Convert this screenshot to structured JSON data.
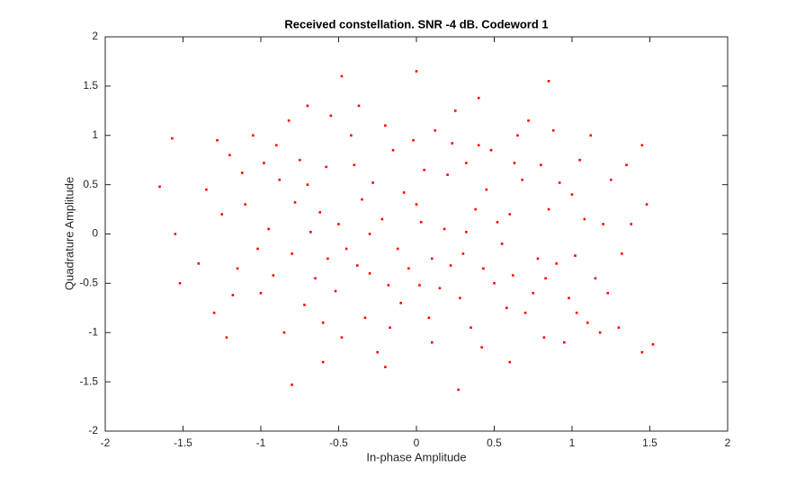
{
  "chart_data": {
    "type": "scatter",
    "title": "Received constellation. SNR -4 dB. Codeword 1",
    "xlabel": "In-phase Amplitude",
    "ylabel": "Quadrature Amplitude",
    "color": "#ff0000",
    "xlim": [
      -2,
      2
    ],
    "ylim": [
      -2,
      2
    ],
    "xticks": [
      -2,
      -1.5,
      -1,
      -0.5,
      0,
      0.5,
      1,
      1.5,
      2
    ],
    "yticks": [
      -2,
      -1.5,
      -1,
      -0.5,
      0,
      0.5,
      1,
      1.5,
      2
    ],
    "x": [
      -1.65,
      -1.57,
      -1.55,
      -1.52,
      0,
      -0.48,
      1.52,
      1.45,
      0.27,
      -0.8,
      0.85,
      1.45,
      1.48,
      -1.2,
      -1.1,
      -1.0,
      -0.9,
      -0.8,
      -0.7,
      -0.6,
      -0.5,
      -0.4,
      -0.3,
      -0.2,
      -0.1,
      0.0,
      0.1,
      0.2,
      0.3,
      0.4,
      0.5,
      0.6,
      0.7,
      0.8,
      0.9,
      1.0,
      1.1,
      1.2,
      -1.15,
      -1.05,
      -0.95,
      -0.85,
      -0.75,
      -0.65,
      -0.55,
      -0.45,
      -0.35,
      -0.25,
      -0.15,
      -0.05,
      0.05,
      0.15,
      0.25,
      0.35,
      0.45,
      0.55,
      0.65,
      0.75,
      0.85,
      0.95,
      1.05,
      1.15,
      1.25,
      -1.3,
      -1.25,
      -0.88,
      -0.72,
      -0.62,
      -0.52,
      -0.42,
      -0.33,
      -0.22,
      -0.12,
      -0.02,
      0.08,
      0.18,
      0.28,
      0.38,
      0.48,
      0.58,
      0.68,
      0.78,
      0.88,
      0.98,
      1.08,
      1.18,
      1.32,
      1.35,
      -1.35,
      -1.22,
      -1.12,
      -1.02,
      -0.92,
      -0.82,
      -0.68,
      -0.58,
      -0.48,
      -0.38,
      -0.28,
      -0.18,
      -0.08,
      0.02,
      0.12,
      0.22,
      0.32,
      0.42,
      0.52,
      0.62,
      0.72,
      0.82,
      0.92,
      1.02,
      1.12,
      -1.4,
      -1.18,
      -0.98,
      -0.78,
      -0.57,
      -0.37,
      -0.17,
      0.03,
      0.23,
      0.43,
      0.63,
      0.83,
      1.03,
      1.23,
      1.38,
      -0.6,
      0.6,
      -0.2,
      0.4,
      -0.7,
      1.3,
      -1.28,
      0.1,
      -0.3,
      0.32
    ],
    "values": [
      0.48,
      0.97,
      0.0,
      -0.5,
      1.65,
      1.6,
      -1.12,
      -1.2,
      -1.58,
      -1.53,
      1.55,
      0.9,
      0.3,
      0.8,
      0.3,
      -0.6,
      0.9,
      -0.2,
      0.5,
      -0.9,
      0.1,
      0.7,
      -0.4,
      1.1,
      -0.7,
      0.3,
      -1.1,
      0.6,
      -0.2,
      0.9,
      -0.5,
      0.2,
      -0.8,
      0.7,
      -0.3,
      0.4,
      -0.9,
      0.1,
      -0.35,
      1.0,
      0.05,
      -1.0,
      0.75,
      -0.45,
      1.2,
      -0.15,
      0.35,
      -1.2,
      0.85,
      -0.35,
      0.65,
      -0.55,
      1.25,
      -0.95,
      0.45,
      -0.1,
      1.0,
      -0.6,
      0.25,
      -1.1,
      0.75,
      -0.45,
      0.55,
      -0.8,
      0.2,
      0.55,
      -0.72,
      0.22,
      -0.58,
      1.0,
      -0.85,
      0.15,
      -0.15,
      0.95,
      -0.85,
      0.05,
      -0.65,
      0.25,
      0.85,
      -0.75,
      0.55,
      -0.25,
      1.05,
      -0.65,
      0.15,
      -1.0,
      -0.2,
      0.7,
      0.45,
      -1.05,
      0.62,
      -0.15,
      -0.42,
      1.15,
      0.02,
      0.68,
      -1.05,
      -0.32,
      0.52,
      -0.52,
      0.42,
      -0.52,
      1.05,
      -0.32,
      0.72,
      -1.15,
      0.12,
      -0.42,
      1.15,
      -1.05,
      0.52,
      -0.22,
      1.0,
      -0.3,
      -0.62,
      0.72,
      0.32,
      -0.25,
      1.3,
      -0.95,
      0.12,
      0.92,
      -0.35,
      0.72,
      -0.45,
      -0.8,
      -0.6,
      0.1,
      -1.3,
      -1.3,
      -1.35,
      1.38,
      1.3,
      -0.95,
      0.95,
      -0.25,
      0.0,
      0.02
    ]
  }
}
